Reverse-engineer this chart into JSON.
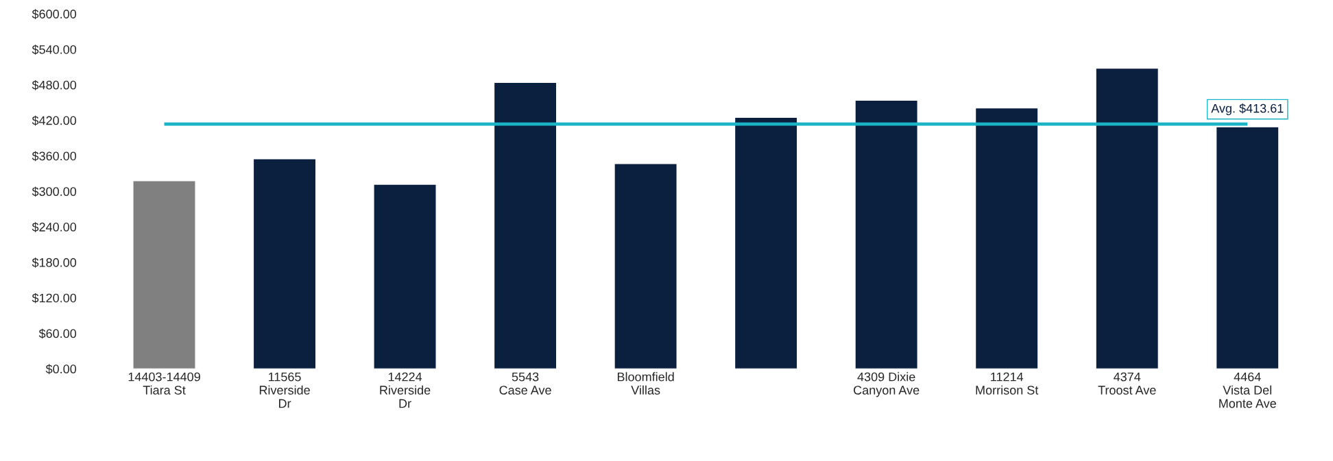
{
  "chart_data": {
    "type": "bar",
    "categories": [
      "14403-14409\nTiara St",
      "11565\nRiverside\nDr",
      "14224\nRiverside\nDr",
      "5543\nCase Ave",
      "Bloomfield\nVillas",
      null,
      "4309 Dixie\nCanyon Ave",
      "11214\nMorrison St",
      "4374\nTroost Ave",
      "4464\nVista Del\nMonte Ave"
    ],
    "values": [
      318,
      355,
      312,
      484,
      347,
      425,
      454,
      441,
      508,
      409
    ],
    "colors": [
      "#808080",
      "#0b1f3f",
      "#0b1f3f",
      "#0b1f3f",
      "#0b1f3f",
      "#0b1f3f",
      "#0b1f3f",
      "#0b1f3f",
      "#0b1f3f",
      "#0b1f3f"
    ],
    "ylim": [
      0,
      600
    ],
    "yticks": [
      {
        "value": 0,
        "label": "$0.00"
      },
      {
        "value": 60,
        "label": "$60.00"
      },
      {
        "value": 120,
        "label": "$120.00"
      },
      {
        "value": 180,
        "label": "$180.00"
      },
      {
        "value": 240,
        "label": "$240.00"
      },
      {
        "value": 300,
        "label": "$300.00"
      },
      {
        "value": 360,
        "label": "$360.00"
      },
      {
        "value": 420,
        "label": "$420.00"
      },
      {
        "value": 480,
        "label": "$480.00"
      },
      {
        "value": 540,
        "label": "$540.00"
      },
      {
        "value": 600,
        "label": "$600.00"
      }
    ],
    "ref_lines": [
      {
        "axis": "y",
        "value": 413.61,
        "label": "Avg. $413.61",
        "color": "#1ab4c6"
      }
    ],
    "grid": false
  }
}
